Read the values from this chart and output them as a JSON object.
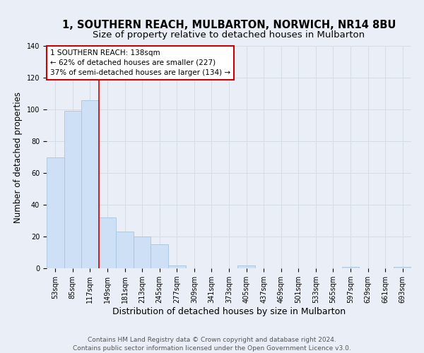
{
  "title": "1, SOUTHERN REACH, MULBARTON, NORWICH, NR14 8BU",
  "subtitle": "Size of property relative to detached houses in Mulbarton",
  "xlabel": "Distribution of detached houses by size in Mulbarton",
  "ylabel": "Number of detached properties",
  "bar_values": [
    70,
    99,
    106,
    32,
    23,
    20,
    15,
    2,
    0,
    0,
    0,
    2,
    0,
    0,
    0,
    0,
    0,
    1,
    0,
    0,
    1
  ],
  "bin_edges": [
    "53sqm",
    "85sqm",
    "117sqm",
    "149sqm",
    "181sqm",
    "213sqm",
    "245sqm",
    "277sqm",
    "309sqm",
    "341sqm",
    "373sqm",
    "405sqm",
    "437sqm",
    "469sqm",
    "501sqm",
    "533sqm",
    "565sqm",
    "597sqm",
    "629sqm",
    "661sqm",
    "693sqm"
  ],
  "bar_color": "#cde0f5",
  "bar_edgecolor": "#a8c4e0",
  "grid_color": "#d4dce8",
  "background_color": "#eaeff7",
  "vline_position": 2,
  "vline_color": "#cc0000",
  "annotation_text": "1 SOUTHERN REACH: 138sqm\n← 62% of detached houses are smaller (227)\n37% of semi-detached houses are larger (134) →",
  "annotation_box_edgecolor": "#cc0000",
  "ylim": [
    0,
    140
  ],
  "yticks": [
    0,
    20,
    40,
    60,
    80,
    100,
    120,
    140
  ],
  "footer_text": "Contains HM Land Registry data © Crown copyright and database right 2024.\nContains public sector information licensed under the Open Government Licence v3.0.",
  "title_fontsize": 10.5,
  "subtitle_fontsize": 9.5,
  "xlabel_fontsize": 9,
  "ylabel_fontsize": 8.5,
  "tick_fontsize": 7,
  "annotation_fontsize": 7.5,
  "footer_fontsize": 6.5
}
